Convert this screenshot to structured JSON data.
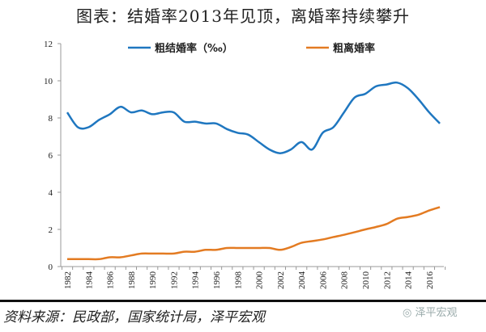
{
  "title": "图表：结婚率2013年见顶，离婚率持续攀升",
  "source": "资料来源：民政部，国家统计局，泽平宏观",
  "watermark": "泽平宏观",
  "chart_data": {
    "type": "line",
    "title": "图表：结婚率2013年见顶，离婚率持续攀升",
    "x": [
      1982,
      1983,
      1984,
      1985,
      1986,
      1987,
      1988,
      1989,
      1990,
      1991,
      1992,
      1993,
      1994,
      1995,
      1996,
      1997,
      1998,
      1999,
      2000,
      2001,
      2002,
      2003,
      2004,
      2005,
      2006,
      2007,
      2008,
      2009,
      2010,
      2011,
      2012,
      2013,
      2014,
      2015,
      2016,
      2017
    ],
    "xticks": [
      "1982",
      "1984",
      "1986",
      "1988",
      "1990",
      "1992",
      "1994",
      "1996",
      "1998",
      "2000",
      "2002",
      "2004",
      "2006",
      "2008",
      "2010",
      "2012",
      "2014",
      "2016"
    ],
    "yticks": [
      "0",
      "2",
      "4",
      "6",
      "8",
      "10",
      "12"
    ],
    "ylim": [
      0,
      12
    ],
    "legend": "top",
    "grid": false,
    "series": [
      {
        "name": "粗结婚率（‰）",
        "color": "#1f77c0",
        "values": [
          8.3,
          7.5,
          7.5,
          7.9,
          8.2,
          8.6,
          8.3,
          8.4,
          8.2,
          8.3,
          8.3,
          7.8,
          7.8,
          7.7,
          7.7,
          7.4,
          7.2,
          7.1,
          6.7,
          6.3,
          6.1,
          6.3,
          6.7,
          6.3,
          7.2,
          7.5,
          8.3,
          9.1,
          9.3,
          9.7,
          9.8,
          9.9,
          9.6,
          9.0,
          8.3,
          7.7
        ]
      },
      {
        "name": "粗离婚率",
        "color": "#e37b22",
        "values": [
          0.4,
          0.4,
          0.4,
          0.4,
          0.5,
          0.5,
          0.6,
          0.7,
          0.7,
          0.7,
          0.7,
          0.8,
          0.8,
          0.9,
          0.9,
          1.0,
          1.0,
          1.0,
          1.0,
          1.0,
          0.9,
          1.05,
          1.28,
          1.37,
          1.46,
          1.59,
          1.71,
          1.85,
          2.0,
          2.13,
          2.29,
          2.58,
          2.67,
          2.79,
          3.02,
          3.2
        ]
      }
    ]
  }
}
